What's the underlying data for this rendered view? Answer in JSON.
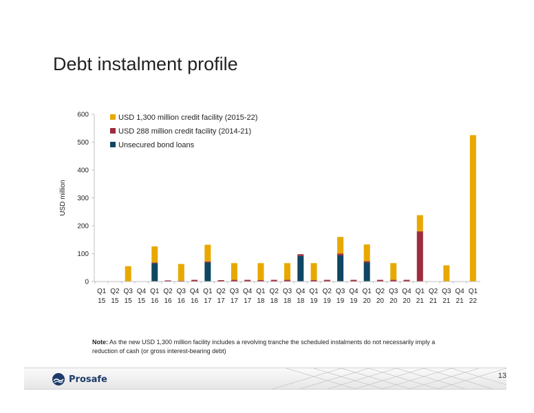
{
  "slide": {
    "title": "Debt instalment profile",
    "note_label": "Note:",
    "note_text": "As the new USD 1,300 million facility includes a revolving tranche the scheduled instalments do not necessarily imply a reduction of cash (or gross interest-bearing debt)",
    "logo_text": "Prosafe",
    "page_number": "13"
  },
  "colors": {
    "facility_1300": "#E8A800",
    "facility_288": "#9E2B3E",
    "bonds": "#0F4662",
    "axis": "#bfbfbf",
    "text": "#222222"
  },
  "chart_data": {
    "type": "bar",
    "stacked": true,
    "title": "",
    "xlabel": "",
    "ylabel": "USD million",
    "ylim": [
      0,
      600
    ],
    "yticks": [
      0,
      100,
      200,
      300,
      400,
      500,
      600
    ],
    "grid": false,
    "legend_position": "top-left",
    "categories": [
      [
        "Q1",
        "15"
      ],
      [
        "Q2",
        "15"
      ],
      [
        "Q3",
        "15"
      ],
      [
        "Q4",
        "15"
      ],
      [
        "Q1",
        "16"
      ],
      [
        "Q2",
        "16"
      ],
      [
        "Q3",
        "16"
      ],
      [
        "Q4",
        "16"
      ],
      [
        "Q1",
        "17"
      ],
      [
        "Q2",
        "17"
      ],
      [
        "Q3",
        "17"
      ],
      [
        "Q4",
        "17"
      ],
      [
        "Q1",
        "18"
      ],
      [
        "Q2",
        "18"
      ],
      [
        "Q3",
        "18"
      ],
      [
        "Q4",
        "18"
      ],
      [
        "Q1",
        "19"
      ],
      [
        "Q2",
        "19"
      ],
      [
        "Q3",
        "19"
      ],
      [
        "Q4",
        "19"
      ],
      [
        "Q1",
        "20"
      ],
      [
        "Q2",
        "20"
      ],
      [
        "Q3",
        "20"
      ],
      [
        "Q4",
        "20"
      ],
      [
        "Q1",
        "21"
      ],
      [
        "Q2",
        "21"
      ],
      [
        "Q3",
        "21"
      ],
      [
        "Q4",
        "21"
      ],
      [
        "Q1",
        "22"
      ]
    ],
    "series": [
      {
        "name": "Unsecured bond loans",
        "color_key": "bonds",
        "values": [
          0,
          0,
          0,
          0,
          66,
          0,
          0,
          0,
          68,
          0,
          0,
          0,
          0,
          0,
          0,
          92,
          0,
          0,
          94,
          0,
          68,
          0,
          0,
          0,
          0,
          0,
          0,
          0,
          0
        ]
      },
      {
        "name": "USD 288 million credit facility (2014-21)",
        "color_key": "facility_288",
        "values": [
          0,
          0,
          0,
          0,
          2,
          4,
          3,
          6,
          4,
          5,
          6,
          6,
          5,
          6,
          6,
          6,
          5,
          6,
          6,
          6,
          5,
          6,
          6,
          6,
          180,
          0,
          0,
          0,
          0
        ]
      },
      {
        "name": "USD 1,300 million credit facility (2015-22)",
        "color_key": "facility_1300",
        "values": [
          0,
          0,
          55,
          0,
          58,
          0,
          60,
          0,
          60,
          0,
          60,
          0,
          61,
          0,
          60,
          0,
          61,
          0,
          60,
          0,
          60,
          0,
          60,
          0,
          58,
          0,
          58,
          0,
          525
        ]
      }
    ],
    "legend_order": [
      2,
      1,
      0
    ]
  }
}
